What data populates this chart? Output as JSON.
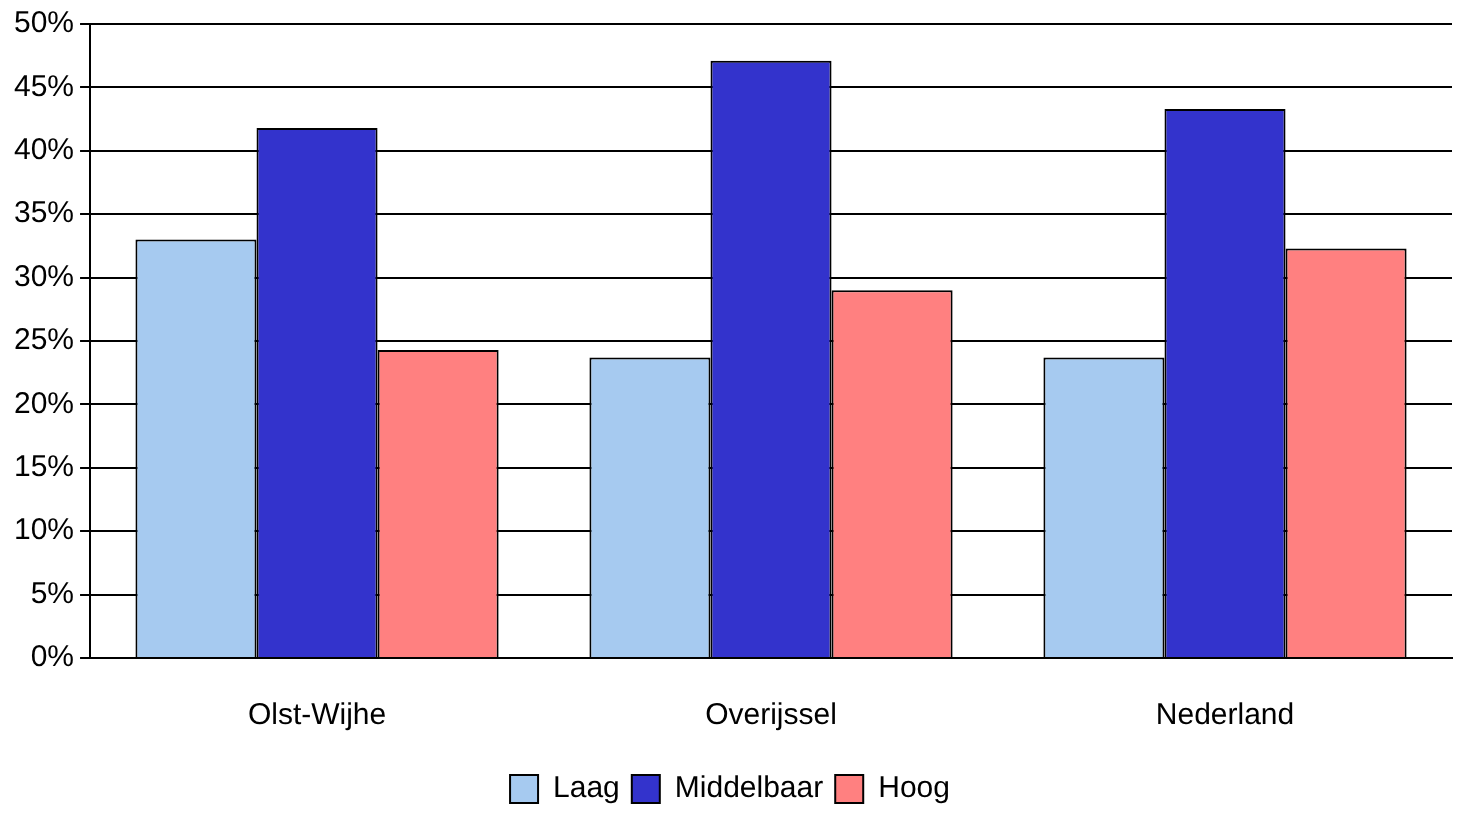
{
  "chart_data": {
    "type": "bar",
    "categories": [
      "Olst-Wijhe",
      "Overijssel",
      "Nederland"
    ],
    "series": [
      {
        "name": "Laag",
        "color": "#a6caf0",
        "values": [
          33,
          23.7,
          23.7
        ]
      },
      {
        "name": "Middelbaar",
        "color": "#3333cc",
        "values": [
          41.8,
          47.1,
          43.3
        ]
      },
      {
        "name": "Hoog",
        "color": "#ff8080",
        "values": [
          24.3,
          29,
          32.3
        ]
      }
    ],
    "ylim": [
      0,
      50
    ],
    "yticks": [
      {
        "value": 0,
        "label": "0%"
      },
      {
        "value": 5,
        "label": "5%"
      },
      {
        "value": 10,
        "label": "10%"
      },
      {
        "value": 15,
        "label": "15%"
      },
      {
        "value": 20,
        "label": "20%"
      },
      {
        "value": 25,
        "label": "25%"
      },
      {
        "value": 30,
        "label": "30%"
      },
      {
        "value": 35,
        "label": "35%"
      },
      {
        "value": 40,
        "label": "40%"
      },
      {
        "value": 45,
        "label": "45%"
      },
      {
        "value": 50,
        "label": "50%"
      }
    ],
    "grid": "y",
    "legend": "bottom"
  }
}
